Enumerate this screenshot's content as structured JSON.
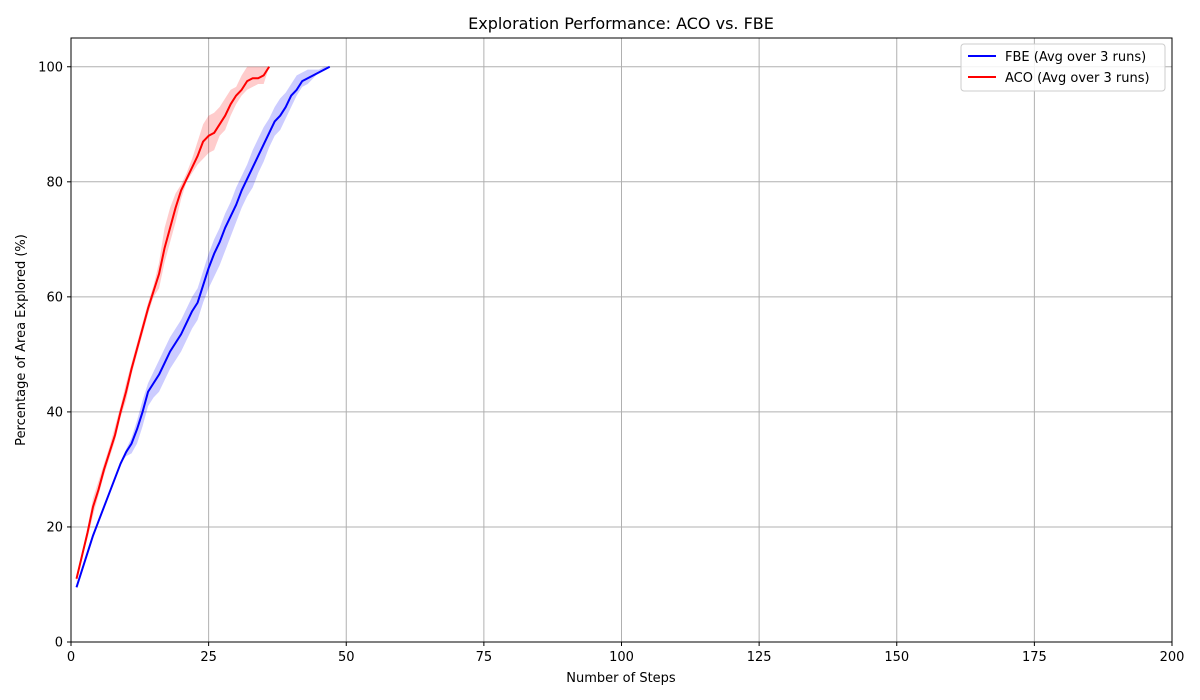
{
  "chart_data": {
    "type": "line",
    "title": "Exploration Performance: ACO vs. FBE",
    "xlabel": "Number of Steps",
    "ylabel": "Percentage of Area Explored (%)",
    "xlim": [
      0,
      200
    ],
    "ylim": [
      0,
      105
    ],
    "xticks": [
      0,
      25,
      50,
      75,
      100,
      125,
      150,
      175,
      200
    ],
    "yticks": [
      0,
      20,
      40,
      60,
      80,
      100
    ],
    "grid": true,
    "legend_position": "top-right",
    "series": [
      {
        "name": "FBE (Avg over 3 runs)",
        "color": "#0000ff",
        "band_color": "#0000ff",
        "x": [
          1,
          2,
          3,
          4,
          5,
          6,
          7,
          8,
          9,
          10,
          11,
          12,
          13,
          14,
          15,
          16,
          17,
          18,
          19,
          20,
          21,
          22,
          23,
          24,
          25,
          26,
          27,
          28,
          29,
          30,
          31,
          32,
          33,
          34,
          35,
          36,
          37,
          38,
          39,
          40,
          41,
          42,
          43,
          44,
          45,
          46,
          47
        ],
        "y": [
          9.5,
          12.5,
          15.5,
          18.5,
          21,
          23.5,
          26,
          28.5,
          31,
          33,
          34.5,
          37,
          40,
          43.5,
          45,
          46.5,
          48.5,
          50.5,
          52,
          53.5,
          55.5,
          57.5,
          59,
          62,
          65,
          67.5,
          69.5,
          72,
          74,
          76,
          78.5,
          80.5,
          82.5,
          84.5,
          86.5,
          88.5,
          90.5,
          91.5,
          93,
          95,
          96,
          97.5,
          98,
          98.5,
          99,
          99.5,
          100
        ],
        "lower": [
          9.5,
          12.5,
          15.5,
          18.5,
          21,
          23.5,
          26,
          28.5,
          31,
          32.3,
          32.8,
          34.5,
          37.5,
          41,
          42.5,
          43.5,
          45.5,
          47.5,
          49,
          50.5,
          52.5,
          54.5,
          56,
          59,
          61.5,
          63.5,
          65.5,
          68,
          70.5,
          73,
          75.5,
          77.5,
          79,
          81.5,
          83.5,
          86,
          88,
          89,
          91,
          93,
          95,
          96.5,
          97,
          98,
          99,
          99.5,
          100
        ],
        "upper": [
          9.5,
          12.5,
          15.5,
          18.5,
          21,
          23.5,
          26,
          28.5,
          31,
          33.5,
          35.5,
          38.5,
          42,
          45,
          47,
          49,
          51,
          53,
          54.5,
          56,
          58,
          60,
          61.5,
          64.5,
          67.5,
          70,
          72,
          74.5,
          76.5,
          79,
          81,
          83,
          85.5,
          87.5,
          89.5,
          91,
          93,
          94.5,
          95.5,
          97,
          98.5,
          99,
          99.5,
          99.5,
          99.5,
          100,
          100
        ]
      },
      {
        "name": "ACO (Avg over 3 runs)",
        "color": "#ff0000",
        "band_color": "#ff0000",
        "x": [
          1,
          2,
          3,
          4,
          5,
          6,
          7,
          8,
          9,
          10,
          11,
          12,
          13,
          14,
          15,
          16,
          17,
          18,
          19,
          20,
          21,
          22,
          23,
          24,
          25,
          26,
          27,
          28,
          29,
          30,
          31,
          32,
          33,
          34,
          35,
          36
        ],
        "y": [
          11,
          15,
          19,
          23.5,
          26.5,
          30,
          33,
          36,
          40,
          43.5,
          47.5,
          51,
          54.5,
          58,
          61,
          64,
          68.5,
          72,
          75.5,
          78.5,
          80.5,
          82.5,
          84.5,
          87,
          88,
          88.5,
          90,
          91.5,
          93.5,
          95,
          96,
          97.5,
          98,
          98,
          98.5,
          100
        ],
        "lower": [
          10.5,
          14.5,
          18,
          22,
          25.5,
          29,
          32,
          35,
          39,
          42,
          46.5,
          50,
          53.5,
          57,
          60,
          61.5,
          66,
          69.5,
          73,
          77,
          80,
          81.5,
          83,
          84,
          85,
          85.5,
          88,
          89,
          91.5,
          93.5,
          95,
          96,
          96.5,
          97,
          97,
          100
        ],
        "upper": [
          11.5,
          15.5,
          20,
          25,
          28,
          31,
          34,
          37.5,
          41,
          45,
          48.5,
          52,
          55.5,
          59,
          62,
          66,
          72,
          75.5,
          78,
          79.5,
          81.5,
          84,
          87,
          90,
          91.5,
          92,
          93,
          94.5,
          96,
          96.5,
          98.5,
          100,
          100,
          100,
          100,
          100
        ]
      }
    ]
  }
}
